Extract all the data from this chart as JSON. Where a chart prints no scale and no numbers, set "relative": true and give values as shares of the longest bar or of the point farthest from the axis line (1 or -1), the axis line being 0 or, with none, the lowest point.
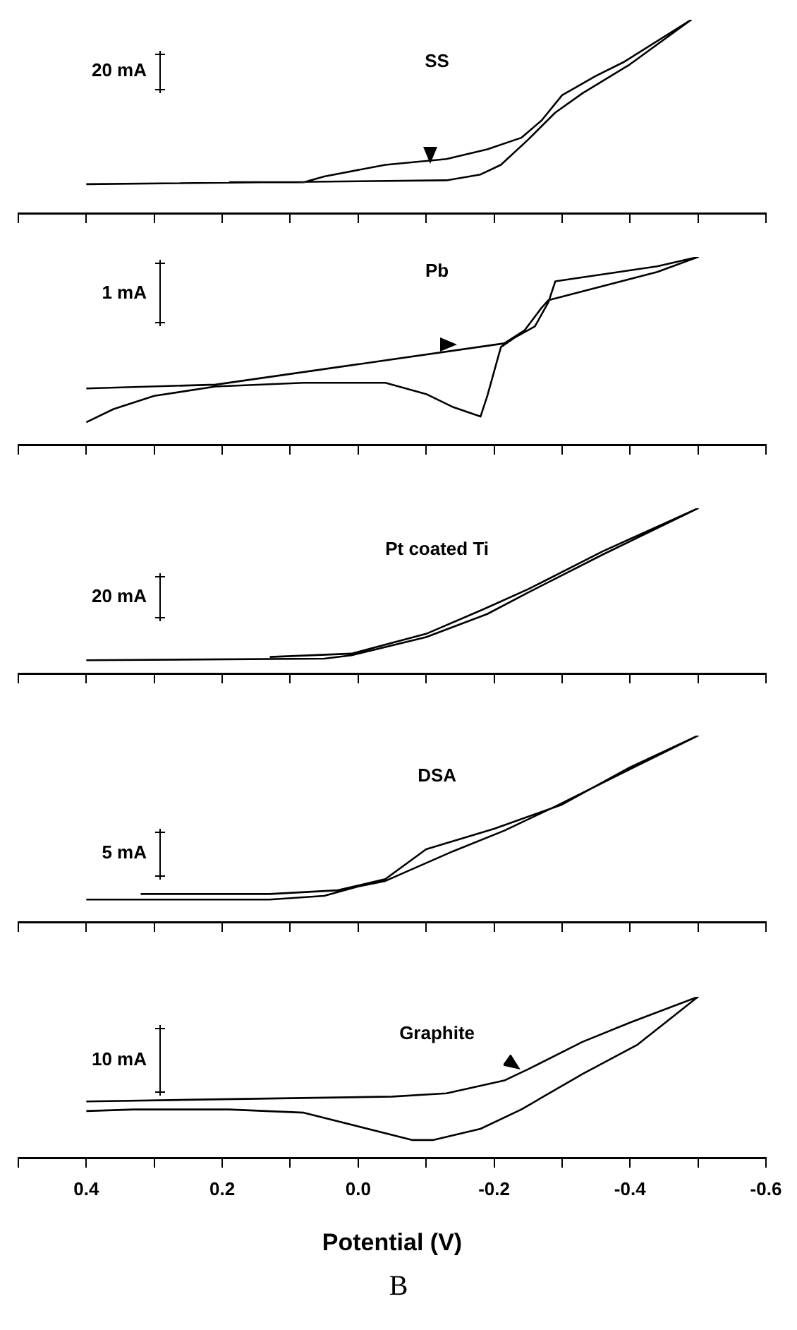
{
  "chart_data": [
    {
      "type": "line",
      "relative": true,
      "xlim": [
        0.5,
        -0.6
      ],
      "tick_labels": false,
      "grid": false,
      "legend": false,
      "marker": "none",
      "line_style": "solid",
      "annotations": [
        "20 mA"
      ],
      "xticks": [
        {
          "value": 0.5,
          "label": null
        },
        {
          "value": 0.4,
          "label": null
        },
        {
          "value": 0.3,
          "label": null
        },
        {
          "value": 0.2,
          "label": null
        },
        {
          "value": 0.1,
          "label": null
        },
        {
          "value": 0,
          "label": null
        },
        {
          "value": -0.1,
          "label": null
        },
        {
          "value": -0.2,
          "label": null
        },
        {
          "value": -0.3,
          "label": null
        },
        {
          "value": -0.4,
          "label": null
        },
        {
          "value": -0.5,
          "label": null
        },
        {
          "value": -0.6,
          "label": null
        }
      ],
      "series": [
        {
          "name": "SS",
          "color": "#000000",
          "x": [
            0.4,
            -0.13,
            -0.18,
            -0.21,
            -0.25,
            -0.29,
            -0.33,
            -0.4,
            -0.49,
            -0.39,
            -0.35,
            -0.3,
            -0.27,
            -0.24,
            -0.19,
            -0.13,
            -0.04,
            0.05,
            0.08,
            0.19
          ],
          "values": [
            0.15,
            0.17,
            0.2,
            0.25,
            0.38,
            0.52,
            0.62,
            0.77,
            1,
            0.78,
            0.71,
            0.61,
            0.48,
            0.39,
            0.33,
            0.28,
            0.25,
            0.19,
            0.16,
            0.16
          ]
        }
      ]
    },
    {
      "type": "line",
      "relative": true,
      "xlim": [
        0.5,
        -0.6
      ],
      "tick_labels": false,
      "grid": false,
      "legend": false,
      "marker": "none",
      "line_style": "solid",
      "annotations": [
        "1 mA"
      ],
      "xticks": [
        {
          "value": 0.5,
          "label": null
        },
        {
          "value": 0.4,
          "label": null
        },
        {
          "value": 0.3,
          "label": null
        },
        {
          "value": 0.2,
          "label": null
        },
        {
          "value": 0.1,
          "label": null
        },
        {
          "value": 0,
          "label": null
        },
        {
          "value": -0.1,
          "label": null
        },
        {
          "value": -0.2,
          "label": null
        },
        {
          "value": -0.3,
          "label": null
        },
        {
          "value": -0.4,
          "label": null
        },
        {
          "value": -0.5,
          "label": null
        },
        {
          "value": -0.6,
          "label": null
        }
      ],
      "series": [
        {
          "name": "Pb",
          "color": "#000000",
          "x": [
            0.4,
            0.21,
            -0.215,
            -0.245,
            -0.27,
            -0.28,
            -0.44,
            -0.5,
            -0.44,
            -0.29,
            -0.28,
            -0.26,
            -0.23,
            -0.21,
            -0.19,
            -0.18,
            -0.14,
            -0.1,
            -0.04,
            0.08,
            0.21,
            0.3,
            0.36,
            0.4
          ],
          "values": [
            0.3,
            0.32,
            0.54,
            0.61,
            0.73,
            0.77,
            0.92,
            1,
            0.95,
            0.87,
            0.76,
            0.63,
            0.57,
            0.52,
            0.26,
            0.15,
            0.2,
            0.27,
            0.33,
            0.33,
            0.31,
            0.26,
            0.19,
            0.12
          ]
        }
      ]
    },
    {
      "type": "line",
      "relative": true,
      "xlim": [
        0.5,
        -0.6
      ],
      "tick_labels": false,
      "grid": false,
      "legend": false,
      "marker": "none",
      "line_style": "solid",
      "annotations": [
        "20 mA"
      ],
      "xticks": [
        {
          "value": 0.5,
          "label": null
        },
        {
          "value": 0.4,
          "label": null
        },
        {
          "value": 0.3,
          "label": null
        },
        {
          "value": 0.2,
          "label": null
        },
        {
          "value": 0.1,
          "label": null
        },
        {
          "value": 0,
          "label": null
        },
        {
          "value": -0.1,
          "label": null
        },
        {
          "value": -0.2,
          "label": null
        },
        {
          "value": -0.3,
          "label": null
        },
        {
          "value": -0.4,
          "label": null
        },
        {
          "value": -0.5,
          "label": null
        },
        {
          "value": -0.6,
          "label": null
        }
      ],
      "series": [
        {
          "name": "Pt coated Ti",
          "color": "#000000",
          "x": [
            0.4,
            0.05,
            0.01,
            -0.1,
            -0.19,
            -0.25,
            -0.36,
            -0.5,
            -0.36,
            -0.25,
            -0.185,
            -0.1,
            0.01,
            0.13
          ],
          "values": [
            0.08,
            0.09,
            0.11,
            0.22,
            0.36,
            0.49,
            0.72,
            1,
            0.74,
            0.51,
            0.39,
            0.24,
            0.12,
            0.1
          ]
        }
      ]
    },
    {
      "type": "line",
      "relative": true,
      "xlim": [
        0.5,
        -0.6
      ],
      "tick_labels": false,
      "grid": false,
      "legend": false,
      "marker": "none",
      "line_style": "solid",
      "annotations": [
        "5 mA"
      ],
      "xticks": [
        {
          "value": 0.5,
          "label": null
        },
        {
          "value": 0.4,
          "label": null
        },
        {
          "value": 0.3,
          "label": null
        },
        {
          "value": 0.2,
          "label": null
        },
        {
          "value": 0.1,
          "label": null
        },
        {
          "value": 0,
          "label": null
        },
        {
          "value": -0.1,
          "label": null
        },
        {
          "value": -0.2,
          "label": null
        },
        {
          "value": -0.3,
          "label": null
        },
        {
          "value": -0.4,
          "label": null
        },
        {
          "value": -0.5,
          "label": null
        },
        {
          "value": -0.6,
          "label": null
        }
      ],
      "series": [
        {
          "name": "DSA",
          "color": "#000000",
          "x": [
            0.4,
            0.13,
            0.05,
            0,
            -0.04,
            -0.14,
            -0.215,
            -0.29,
            -0.4,
            -0.5,
            -0.4,
            -0.3,
            -0.2,
            -0.1,
            -0.04,
            0.03,
            0.13,
            0.32
          ],
          "values": [
            0.12,
            0.12,
            0.14,
            0.19,
            0.22,
            0.38,
            0.49,
            0.62,
            0.82,
            1,
            0.83,
            0.63,
            0.5,
            0.39,
            0.23,
            0.17,
            0.15,
            0.15
          ]
        }
      ]
    },
    {
      "type": "line",
      "relative": true,
      "xlim": [
        0.5,
        -0.6
      ],
      "xlabel": "Potential (V)",
      "tick_labels": "x",
      "grid": false,
      "legend": false,
      "marker": "none",
      "line_style": "solid",
      "annotations": [
        "10 mA",
        "B"
      ],
      "xticks": [
        {
          "value": 0.5,
          "label": null
        },
        0.4,
        {
          "value": 0.3,
          "label": null
        },
        0.2,
        {
          "value": 0.1,
          "label": null
        },
        {
          "value": 0,
          "label": "0.0"
        },
        {
          "value": -0.1,
          "label": null
        },
        -0.2,
        {
          "value": -0.3,
          "label": null
        },
        -0.4,
        {
          "value": -0.5,
          "label": null
        },
        -0.6
      ],
      "series": [
        {
          "name": "Graphite",
          "color": "#000000",
          "x": [
            0.4,
            0.25,
            -0.05,
            -0.13,
            -0.215,
            -0.25,
            -0.33,
            -0.4,
            -0.5,
            -0.41,
            -0.33,
            -0.24,
            -0.18,
            -0.11,
            -0.08,
            0.08,
            0.19,
            0.33,
            0.4
          ],
          "values": [
            0.35,
            0.36,
            0.38,
            0.4,
            0.48,
            0.55,
            0.72,
            0.84,
            1,
            0.7,
            0.52,
            0.3,
            0.18,
            0.11,
            0.11,
            0.28,
            0.3,
            0.3,
            0.29
          ]
        }
      ]
    }
  ]
}
